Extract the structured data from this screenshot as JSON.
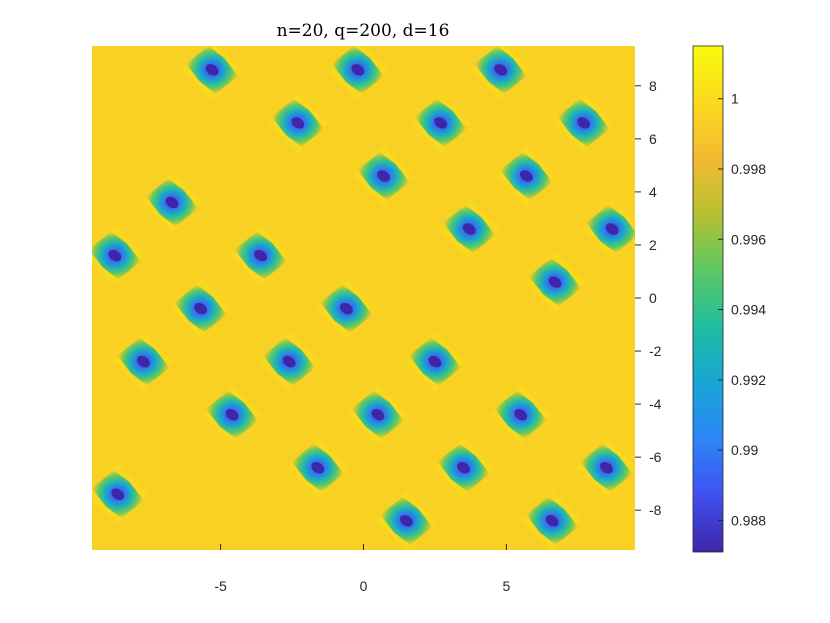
{
  "chart_data": {
    "type": "heatmap",
    "title": "n=20, q=200, d=16",
    "xlabel": "",
    "ylabel": "",
    "xlim": [
      -9.5,
      9.5
    ],
    "ylim": [
      -9.5,
      9.5
    ],
    "x_ticks": [
      -5,
      0,
      5
    ],
    "y_ticks": [
      8,
      6,
      4,
      2,
      0,
      -2,
      -4,
      -6,
      -8
    ],
    "y_axis_side": "right",
    "grid": false,
    "background_value": 0.9995,
    "min_value": 0.9871,
    "colorbar": {
      "range": [
        0.9871,
        1.0015
      ],
      "ticks": [
        1,
        0.998,
        0.996,
        0.994,
        0.992,
        0.99,
        0.988
      ],
      "tick_labels": [
        "1",
        "0.998",
        "0.996",
        "0.994",
        "0.992",
        "0.99",
        "0.988"
      ],
      "colormap": "parula",
      "stops": [
        "#3e26a8",
        "#4150f1",
        "#2c85f7",
        "#17a5d5",
        "#1fbda2",
        "#5cc863",
        "#b5c130",
        "#f3ba31",
        "#fbd91e",
        "#f9fb0e"
      ]
    },
    "minima": [
      {
        "x": -5.3,
        "y": 8.6
      },
      {
        "x": -0.2,
        "y": 8.6
      },
      {
        "x": 4.8,
        "y": 8.6
      },
      {
        "x": -2.3,
        "y": 6.6
      },
      {
        "x": 2.7,
        "y": 6.6
      },
      {
        "x": 7.7,
        "y": 6.6
      },
      {
        "x": 0.7,
        "y": 4.6
      },
      {
        "x": 5.7,
        "y": 4.6
      },
      {
        "x": -6.7,
        "y": 3.6
      },
      {
        "x": 3.7,
        "y": 2.6
      },
      {
        "x": 8.7,
        "y": 2.6
      },
      {
        "x": -8.7,
        "y": 1.6
      },
      {
        "x": -3.6,
        "y": 1.6
      },
      {
        "x": 6.7,
        "y": 0.6
      },
      {
        "x": -5.7,
        "y": -0.4
      },
      {
        "x": -0.6,
        "y": -0.4
      },
      {
        "x": -7.7,
        "y": -2.4
      },
      {
        "x": -2.6,
        "y": -2.4
      },
      {
        "x": 2.5,
        "y": -2.4
      },
      {
        "x": -4.6,
        "y": -4.4
      },
      {
        "x": 0.5,
        "y": -4.4
      },
      {
        "x": 5.5,
        "y": -4.4
      },
      {
        "x": -1.6,
        "y": -6.4
      },
      {
        "x": 3.5,
        "y": -6.4
      },
      {
        "x": 8.5,
        "y": -6.4
      },
      {
        "x": -8.6,
        "y": -7.4
      },
      {
        "x": 1.5,
        "y": -8.4
      },
      {
        "x": 6.6,
        "y": -8.4
      }
    ]
  }
}
